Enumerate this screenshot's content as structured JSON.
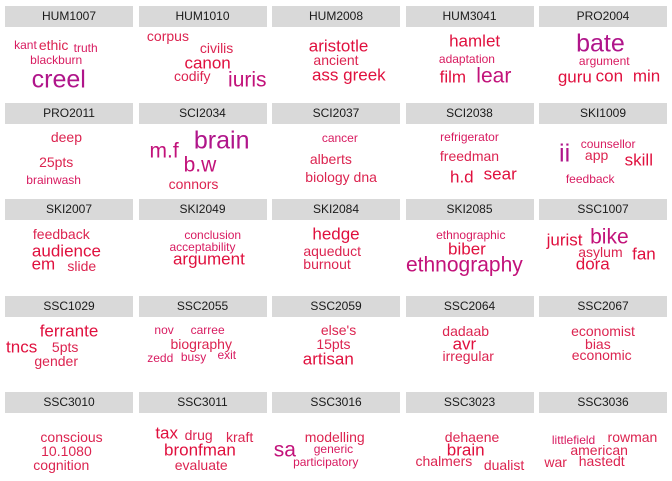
{
  "chart_data": {
    "type": "wordcloud",
    "panels": [
      {
        "title": "HUM1007",
        "words": [
          {
            "text": "kant",
            "weight": 1,
            "x": 0.16,
            "y": 0.27
          },
          {
            "text": "ethic",
            "weight": 2,
            "x": 0.38,
            "y": 0.27
          },
          {
            "text": "truth",
            "weight": 1,
            "x": 0.63,
            "y": 0.31
          },
          {
            "text": "blackburn",
            "weight": 1,
            "x": 0.4,
            "y": 0.49
          },
          {
            "text": "creel",
            "weight": 5,
            "x": 0.42,
            "y": 0.78
          }
        ]
      },
      {
        "title": "HUM1010",
        "words": [
          {
            "text": "corpus",
            "weight": 2,
            "x": 0.23,
            "y": 0.13
          },
          {
            "text": "civilis",
            "weight": 2,
            "x": 0.61,
            "y": 0.31
          },
          {
            "text": "canon",
            "weight": 3,
            "x": 0.54,
            "y": 0.53
          },
          {
            "text": "codify",
            "weight": 2,
            "x": 0.42,
            "y": 0.72
          },
          {
            "text": "iuris",
            "weight": 4,
            "x": 0.85,
            "y": 0.78
          }
        ]
      },
      {
        "title": "HUM2008",
        "words": [
          {
            "text": "aristotle",
            "weight": 3,
            "x": 0.52,
            "y": 0.28
          },
          {
            "text": "ancient",
            "weight": 2,
            "x": 0.5,
            "y": 0.49
          },
          {
            "text": "ass greek",
            "weight": 3,
            "x": 0.6,
            "y": 0.7
          }
        ]
      },
      {
        "title": "HUM3041",
        "words": [
          {
            "text": "hamlet",
            "weight": 3,
            "x": 0.54,
            "y": 0.21
          },
          {
            "text": "adaptation",
            "weight": 1,
            "x": 0.48,
            "y": 0.47
          },
          {
            "text": "film",
            "weight": 3,
            "x": 0.37,
            "y": 0.74
          },
          {
            "text": "lear",
            "weight": 4,
            "x": 0.69,
            "y": 0.72
          }
        ]
      },
      {
        "title": "PRO2004",
        "words": [
          {
            "text": "bate",
            "weight": 5,
            "x": 0.48,
            "y": 0.25
          },
          {
            "text": "argument",
            "weight": 1,
            "x": 0.51,
            "y": 0.5
          },
          {
            "text": "guru",
            "weight": 3,
            "x": 0.28,
            "y": 0.74
          },
          {
            "text": "con",
            "weight": 3,
            "x": 0.55,
            "y": 0.72
          },
          {
            "text": "min",
            "weight": 3,
            "x": 0.84,
            "y": 0.72
          }
        ]
      },
      {
        "title": "PRO2011",
        "words": [
          {
            "text": "deep",
            "weight": 2,
            "x": 0.48,
            "y": 0.2
          },
          {
            "text": "25pts",
            "weight": 2,
            "x": 0.4,
            "y": 0.56
          },
          {
            "text": "brainwash",
            "weight": 1,
            "x": 0.38,
            "y": 0.83
          }
        ]
      },
      {
        "title": "SCI2034",
        "words": [
          {
            "text": "m.f",
            "weight": 4,
            "x": 0.2,
            "y": 0.4
          },
          {
            "text": "brain",
            "weight": 5,
            "x": 0.65,
            "y": 0.25
          },
          {
            "text": "b.w",
            "weight": 4,
            "x": 0.48,
            "y": 0.61
          },
          {
            "text": "connors",
            "weight": 2,
            "x": 0.43,
            "y": 0.89
          }
        ]
      },
      {
        "title": "SCI2037",
        "words": [
          {
            "text": "cancer",
            "weight": 1,
            "x": 0.53,
            "y": 0.21
          },
          {
            "text": "alberts",
            "weight": 2,
            "x": 0.46,
            "y": 0.52
          },
          {
            "text": "biology dna",
            "weight": 2,
            "x": 0.54,
            "y": 0.78
          }
        ]
      },
      {
        "title": "SCI2038",
        "words": [
          {
            "text": "refrigerator",
            "weight": 1,
            "x": 0.5,
            "y": 0.2
          },
          {
            "text": "freedman",
            "weight": 2,
            "x": 0.5,
            "y": 0.48
          },
          {
            "text": "h.d",
            "weight": 3,
            "x": 0.44,
            "y": 0.79
          },
          {
            "text": "sear",
            "weight": 3,
            "x": 0.74,
            "y": 0.74
          }
        ]
      },
      {
        "title": "SKI1009",
        "words": [
          {
            "text": "ii",
            "weight": 5,
            "x": 0.2,
            "y": 0.45
          },
          {
            "text": "counsellor",
            "weight": 1,
            "x": 0.54,
            "y": 0.3
          },
          {
            "text": "app",
            "weight": 2,
            "x": 0.45,
            "y": 0.47
          },
          {
            "text": "skill",
            "weight": 3,
            "x": 0.78,
            "y": 0.53
          },
          {
            "text": "feedback",
            "weight": 1,
            "x": 0.4,
            "y": 0.81
          }
        ]
      },
      {
        "title": "SKI2007",
        "words": [
          {
            "text": "feedback",
            "weight": 2,
            "x": 0.44,
            "y": 0.2
          },
          {
            "text": "audience",
            "weight": 3,
            "x": 0.48,
            "y": 0.45
          },
          {
            "text": "em",
            "weight": 3,
            "x": 0.3,
            "y": 0.64
          },
          {
            "text": "slide",
            "weight": 2,
            "x": 0.6,
            "y": 0.67
          }
        ]
      },
      {
        "title": "SKI2049",
        "words": [
          {
            "text": "conclusion",
            "weight": 1,
            "x": 0.58,
            "y": 0.22
          },
          {
            "text": "acceptability",
            "weight": 1,
            "x": 0.5,
            "y": 0.4
          },
          {
            "text": "argument",
            "weight": 3,
            "x": 0.55,
            "y": 0.57
          }
        ]
      },
      {
        "title": "SKI2084",
        "words": [
          {
            "text": "hedge",
            "weight": 3,
            "x": 0.5,
            "y": 0.21
          },
          {
            "text": "aqueduct",
            "weight": 2,
            "x": 0.47,
            "y": 0.46
          },
          {
            "text": "burnout",
            "weight": 2,
            "x": 0.43,
            "y": 0.64
          }
        ]
      },
      {
        "title": "SKI2085",
        "words": [
          {
            "text": "ethnographic",
            "weight": 1,
            "x": 0.51,
            "y": 0.22
          },
          {
            "text": "biber",
            "weight": 3,
            "x": 0.48,
            "y": 0.43
          },
          {
            "text": "ethnography",
            "weight": 4,
            "x": 0.46,
            "y": 0.66
          }
        ]
      },
      {
        "title": "SSC1007",
        "words": [
          {
            "text": "jurist",
            "weight": 3,
            "x": 0.2,
            "y": 0.3
          },
          {
            "text": "bike",
            "weight": 4,
            "x": 0.55,
            "y": 0.25
          },
          {
            "text": "asylum",
            "weight": 2,
            "x": 0.48,
            "y": 0.47
          },
          {
            "text": "fan",
            "weight": 3,
            "x": 0.82,
            "y": 0.5
          },
          {
            "text": "dora",
            "weight": 3,
            "x": 0.42,
            "y": 0.64
          }
        ]
      },
      {
        "title": "SSC1029",
        "words": [
          {
            "text": "ferrante",
            "weight": 3,
            "x": 0.5,
            "y": 0.21
          },
          {
            "text": "tncs",
            "weight": 3,
            "x": 0.13,
            "y": 0.45
          },
          {
            "text": "5pts",
            "weight": 2,
            "x": 0.47,
            "y": 0.45
          },
          {
            "text": "gender",
            "weight": 2,
            "x": 0.4,
            "y": 0.65
          }
        ]
      },
      {
        "title": "SSC2055",
        "words": [
          {
            "text": "nov",
            "weight": 1,
            "x": 0.2,
            "y": 0.2
          },
          {
            "text": "carree",
            "weight": 1,
            "x": 0.54,
            "y": 0.2
          },
          {
            "text": "biography",
            "weight": 2,
            "x": 0.49,
            "y": 0.4
          },
          {
            "text": "zedd",
            "weight": 1,
            "x": 0.17,
            "y": 0.61
          },
          {
            "text": "busy",
            "weight": 1,
            "x": 0.43,
            "y": 0.59
          },
          {
            "text": "exit",
            "weight": 1,
            "x": 0.69,
            "y": 0.57
          }
        ]
      },
      {
        "title": "SSC2059",
        "words": [
          {
            "text": "else's",
            "weight": 2,
            "x": 0.52,
            "y": 0.2
          },
          {
            "text": "15pts",
            "weight": 2,
            "x": 0.48,
            "y": 0.4
          },
          {
            "text": "artisan",
            "weight": 3,
            "x": 0.44,
            "y": 0.62
          }
        ]
      },
      {
        "title": "SSC2064",
        "words": [
          {
            "text": "dadaab",
            "weight": 2,
            "x": 0.47,
            "y": 0.21
          },
          {
            "text": "avr",
            "weight": 3,
            "x": 0.46,
            "y": 0.4
          },
          {
            "text": "irregular",
            "weight": 2,
            "x": 0.49,
            "y": 0.58
          }
        ]
      },
      {
        "title": "SSC2067",
        "words": [
          {
            "text": "economist",
            "weight": 2,
            "x": 0.5,
            "y": 0.21
          },
          {
            "text": "bias",
            "weight": 2,
            "x": 0.46,
            "y": 0.4
          },
          {
            "text": "economic",
            "weight": 2,
            "x": 0.49,
            "y": 0.56
          }
        ]
      },
      {
        "title": "SSC3010",
        "words": [
          {
            "text": "conscious",
            "weight": 2,
            "x": 0.52,
            "y": 0.35
          },
          {
            "text": "10.1080",
            "weight": 2,
            "x": 0.48,
            "y": 0.56
          },
          {
            "text": "cognition",
            "weight": 2,
            "x": 0.44,
            "y": 0.76
          }
        ]
      },
      {
        "title": "SSC3011",
        "words": [
          {
            "text": "tax",
            "weight": 3,
            "x": 0.22,
            "y": 0.3
          },
          {
            "text": "drug",
            "weight": 2,
            "x": 0.47,
            "y": 0.33
          },
          {
            "text": "kraft",
            "weight": 2,
            "x": 0.79,
            "y": 0.35
          },
          {
            "text": "bronfman",
            "weight": 3,
            "x": 0.48,
            "y": 0.55
          },
          {
            "text": "evaluate",
            "weight": 2,
            "x": 0.49,
            "y": 0.76
          }
        ]
      },
      {
        "title": "SSC3016",
        "words": [
          {
            "text": "modelling",
            "weight": 2,
            "x": 0.49,
            "y": 0.35
          },
          {
            "text": "sa",
            "weight": 4,
            "x": 0.1,
            "y": 0.55
          },
          {
            "text": "generic",
            "weight": 1,
            "x": 0.48,
            "y": 0.53
          },
          {
            "text": "participatory",
            "weight": 1,
            "x": 0.42,
            "y": 0.72
          }
        ]
      },
      {
        "title": "SSC3023",
        "words": [
          {
            "text": "dehaene",
            "weight": 2,
            "x": 0.52,
            "y": 0.35
          },
          {
            "text": "brain",
            "weight": 3,
            "x": 0.47,
            "y": 0.55
          },
          {
            "text": "chalmers",
            "weight": 2,
            "x": 0.3,
            "y": 0.71
          },
          {
            "text": "dualist",
            "weight": 2,
            "x": 0.77,
            "y": 0.76
          }
        ]
      },
      {
        "title": "SSC3036",
        "words": [
          {
            "text": "littlefield",
            "weight": 1,
            "x": 0.27,
            "y": 0.39
          },
          {
            "text": "rowman",
            "weight": 2,
            "x": 0.73,
            "y": 0.36
          },
          {
            "text": "american",
            "weight": 2,
            "x": 0.47,
            "y": 0.55
          },
          {
            "text": "war",
            "weight": 2,
            "x": 0.13,
            "y": 0.72
          },
          {
            "text": "hastedt",
            "weight": 2,
            "x": 0.49,
            "y": 0.7
          }
        ]
      }
    ]
  },
  "colors": {
    "w1": "#d81b60",
    "w2": "#dc2450",
    "w3": "#e0103e",
    "w4": "#c2127a",
    "w5": "#b0158a"
  }
}
